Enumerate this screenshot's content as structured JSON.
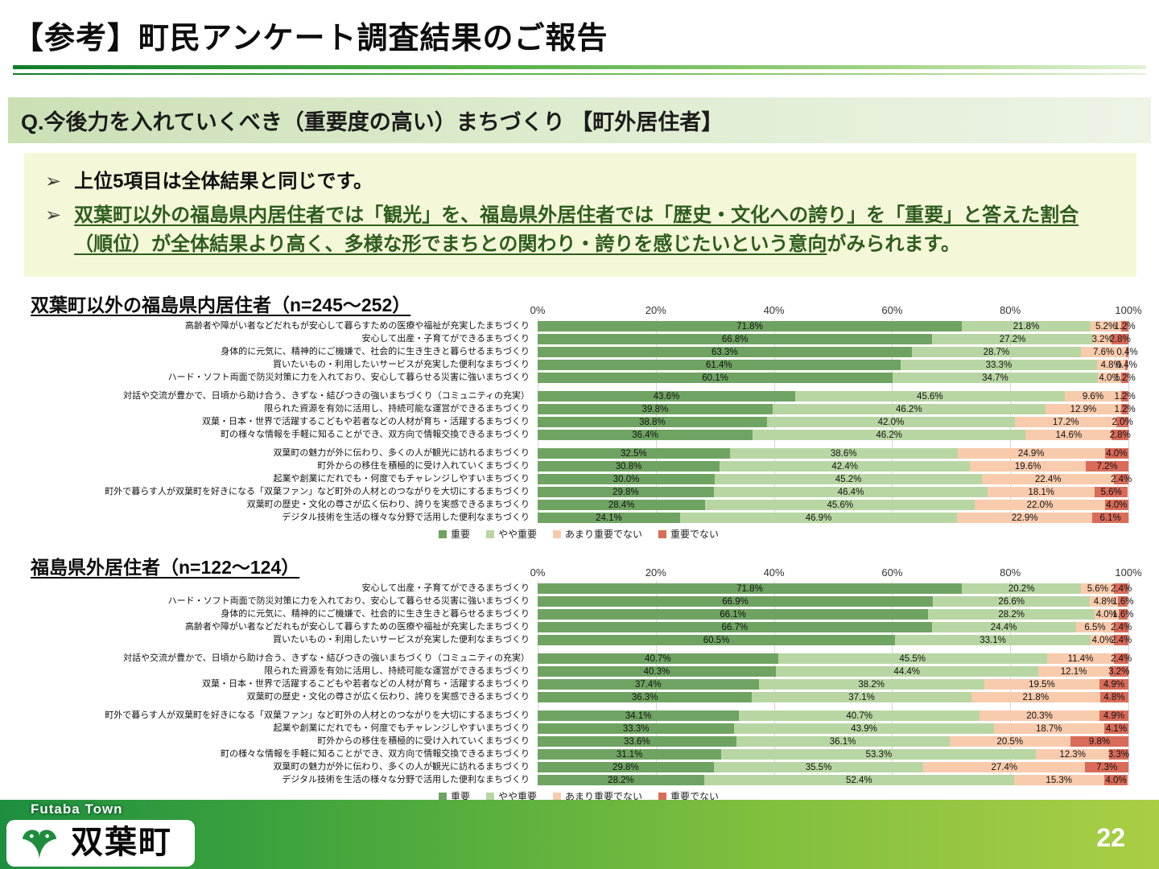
{
  "page": {
    "title": "【参考】町民アンケート調査結果のご報告",
    "question": "Q.今後力を入れていくべき（重要度の高い）まちづくり 【町外居住者】",
    "bullet_marker": "➢",
    "bullets": {
      "first": "上位5項目は全体結果と同じです。",
      "second_underlined": "双葉町以外の福島県内居住者では「観光」を、福島県外居住者では「歴史・文化への誇り」を「重要」と答えた割合（順位）が全体結果より高く、多様な形でまちとの関わり・誇りを感じたいという意向",
      "second_tail": "がみられます。"
    },
    "footer": {
      "logo_caption": "Futaba Town",
      "logo_text": "双葉町",
      "page_number": "22"
    }
  },
  "legend": {
    "labels": [
      "重要",
      "やや重要",
      "あまり重要でない",
      "重要でない"
    ],
    "colors": [
      "#6fa362",
      "#b8d6a3",
      "#f8cbad",
      "#d96b58"
    ]
  },
  "chart_data": [
    {
      "type": "bar",
      "subtype": "horizontal-stacked",
      "title": "双葉町以外の福島県内居住者（n=245～252）",
      "series_names": [
        "重要",
        "やや重要",
        "あまり重要でない",
        "重要でない"
      ],
      "x_ticks": [
        "0%",
        "20%",
        "40%",
        "60%",
        "80%",
        "100%"
      ],
      "xlim": [
        0,
        100
      ],
      "grid": true,
      "legend_position": "bottom",
      "groups": [
        {
          "rows": [
            {
              "label": "高齢者や障がい者などだれもが安心して暮らすための医療や福祉が充実したまちづくり",
              "values": [
                71.8,
                21.8,
                5.2,
                1.2
              ]
            },
            {
              "label": "安心して出産・子育てができるまちづくり",
              "values": [
                66.8,
                27.2,
                3.2,
                2.8
              ]
            },
            {
              "label": "身体的に元気に、精神的にご機嫌で、社会的に生き生きと暮らせるまちづくり",
              "values": [
                63.3,
                28.7,
                7.6,
                0.4
              ]
            },
            {
              "label": "買いたいもの・利用したいサービスが充実した便利なまちづくり",
              "values": [
                61.4,
                33.3,
                4.8,
                0.4
              ]
            },
            {
              "label": "ハード・ソフト両面で防災対策に力を入れており、安心して暮らせる災害に強いまちづくり",
              "values": [
                60.1,
                34.7,
                4.0,
                1.2
              ]
            }
          ]
        },
        {
          "rows": [
            {
              "label": "対話や交流が豊かで、日頃から助け合う、きずな・結びつきの強いまちづくり（コミュニティの充実）",
              "values": [
                43.6,
                45.6,
                9.6,
                1.2
              ]
            },
            {
              "label": "限られた資源を有効に活用し、持続可能な運営ができるまちづくり",
              "values": [
                39.8,
                46.2,
                12.9,
                1.2
              ]
            },
            {
              "label": "双葉・日本・世界で活躍するこどもや若者などの人材が育ち・活躍するまちづくり",
              "values": [
                38.8,
                42.0,
                17.2,
                2.0
              ]
            },
            {
              "label": "町の様々な情報を手軽に知ることができ、双方向で情報交換できるまちづくり",
              "values": [
                36.4,
                46.2,
                14.6,
                2.8
              ]
            }
          ]
        },
        {
          "rows": [
            {
              "label": "双葉町の魅力が外に伝わり、多くの人が観光に訪れるまちづくり",
              "values": [
                32.5,
                38.6,
                24.9,
                4.0
              ]
            },
            {
              "label": "町外からの移住を積極的に受け入れていくまちづくり",
              "values": [
                30.8,
                42.4,
                19.6,
                7.2
              ]
            },
            {
              "label": "起業や創業にだれでも・何度でもチャレンジしやすいまちづくり",
              "values": [
                30.0,
                45.2,
                22.4,
                2.4
              ]
            },
            {
              "label": "町外で暮らす人が双葉町を好きになる「双葉ファン」など町外の人材とのつながりを大切にするまちづくり",
              "values": [
                29.8,
                46.4,
                18.1,
                5.6
              ]
            },
            {
              "label": "双葉町の歴史・文化の尊さが広く伝わり、誇りを実感できるまちづくり",
              "values": [
                28.4,
                45.6,
                22.0,
                4.0
              ]
            },
            {
              "label": "デジタル技術を生活の様々な分野で活用した便利なまちづくり",
              "values": [
                24.1,
                46.9,
                22.9,
                6.1
              ]
            }
          ]
        }
      ]
    },
    {
      "type": "bar",
      "subtype": "horizontal-stacked",
      "title": "福島県外居住者（n=122～124）",
      "series_names": [
        "重要",
        "やや重要",
        "あまり重要でない",
        "重要でない"
      ],
      "x_ticks": [
        "0%",
        "20%",
        "40%",
        "60%",
        "80%",
        "100%"
      ],
      "xlim": [
        0,
        100
      ],
      "grid": true,
      "legend_position": "bottom",
      "groups": [
        {
          "rows": [
            {
              "label": "安心して出産・子育てができるまちづくり",
              "values": [
                71.8,
                20.2,
                5.6,
                2.4
              ]
            },
            {
              "label": "ハード・ソフト両面で防災対策に力を入れており、安心して暮らせる災害に強いまちづくり",
              "values": [
                66.9,
                26.6,
                4.8,
                1.6
              ]
            },
            {
              "label": "身体的に元気に、精神的にご機嫌で、社会的に生き生きと暮らせるまちづくり",
              "values": [
                66.1,
                28.2,
                4.0,
                1.6
              ]
            },
            {
              "label": "高齢者や障がい者などだれもが安心して暮らすための医療や福祉が充実したまちづくり",
              "values": [
                66.7,
                24.4,
                6.5,
                2.4
              ]
            },
            {
              "label": "買いたいもの・利用したいサービスが充実した便利なまちづくり",
              "values": [
                60.5,
                33.1,
                4.0,
                2.4
              ]
            }
          ]
        },
        {
          "rows": [
            {
              "label": "対話や交流が豊かで、日頃から助け合う、きずな・結びつきの強いまちづくり（コミュニティの充実）",
              "values": [
                40.7,
                45.5,
                11.4,
                2.4
              ]
            },
            {
              "label": "限られた資源を有効に活用し、持続可能な運営ができるまちづくり",
              "values": [
                40.3,
                44.4,
                12.1,
                3.2
              ]
            },
            {
              "label": "双葉・日本・世界で活躍するこどもや若者などの人材が育ち・活躍するまちづくり",
              "values": [
                37.4,
                38.2,
                19.5,
                4.9
              ]
            },
            {
              "label": "双葉町の歴史・文化の尊さが広く伝わり、誇りを実感できるまちづくり",
              "values": [
                36.3,
                37.1,
                21.8,
                4.8
              ]
            }
          ]
        },
        {
          "rows": [
            {
              "label": "町外で暮らす人が双葉町を好きになる「双葉ファン」など町外の人材とのつながりを大切にするまちづくり",
              "values": [
                34.1,
                40.7,
                20.3,
                4.9
              ]
            },
            {
              "label": "起業や創業にだれでも・何度でもチャレンジしやすいまちづくり",
              "values": [
                33.3,
                43.9,
                18.7,
                4.1
              ]
            },
            {
              "label": "町外からの移住を積極的に受け入れていくまちづくり",
              "values": [
                33.6,
                36.1,
                20.5,
                9.8
              ]
            },
            {
              "label": "町の様々な情報を手軽に知ることができ、双方向で情報交換できるまちづくり",
              "values": [
                31.1,
                53.3,
                12.3,
                3.3
              ]
            },
            {
              "label": "双葉町の魅力が外に伝わり、多くの人が観光に訪れるまちづくり",
              "values": [
                29.8,
                35.5,
                27.4,
                7.3
              ]
            },
            {
              "label": "デジタル技術を生活の様々な分野で活用した便利なまちづくり",
              "values": [
                28.2,
                52.4,
                15.3,
                4.0
              ]
            }
          ]
        }
      ]
    }
  ]
}
